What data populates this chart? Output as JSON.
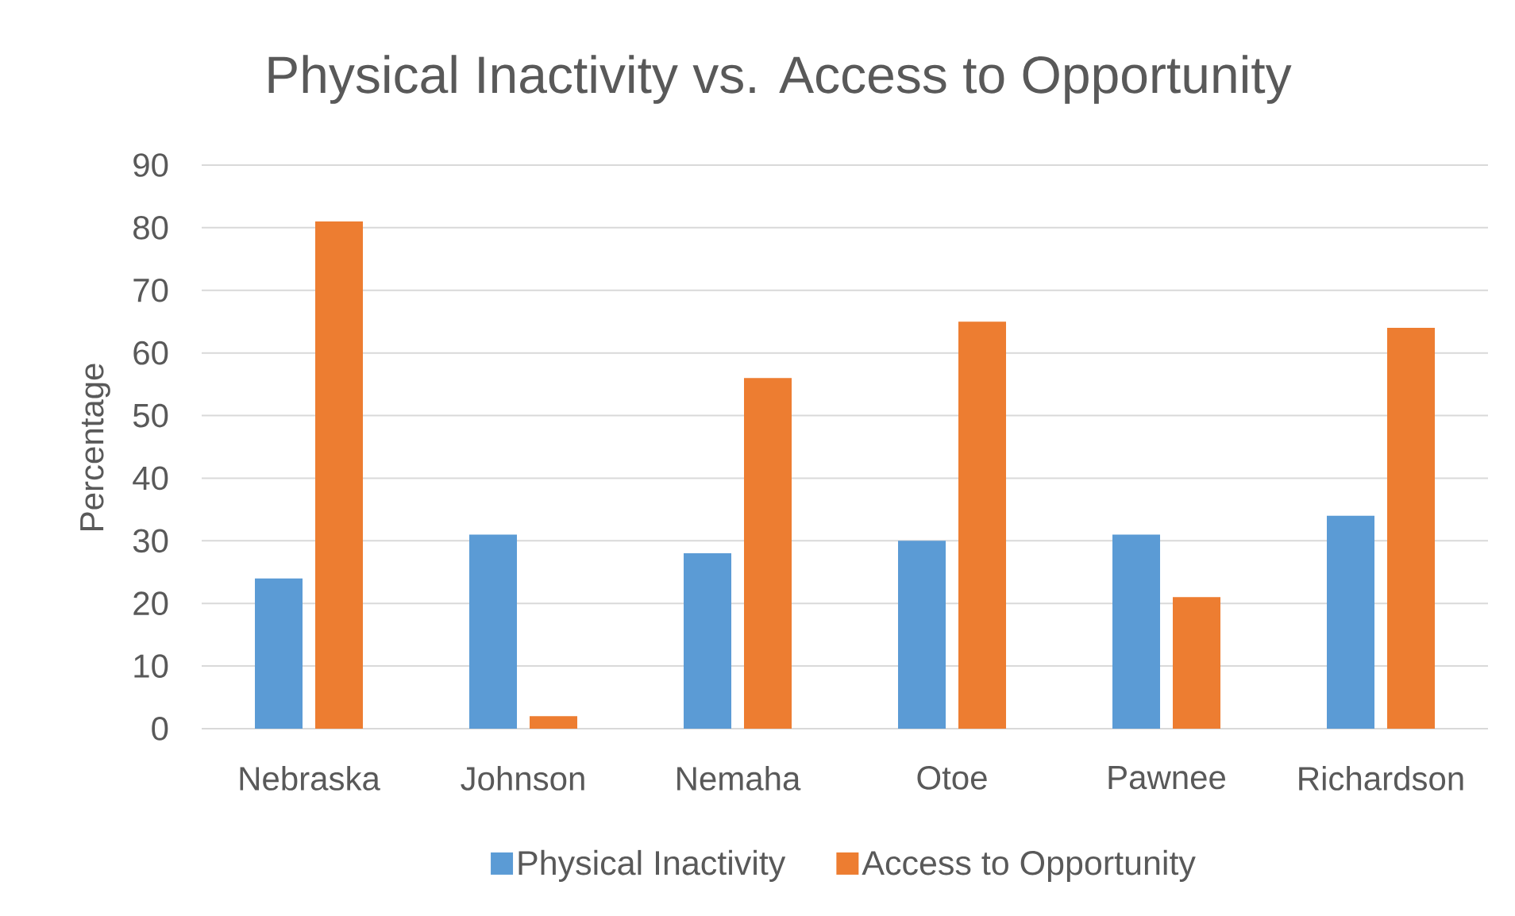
{
  "chart_data": {
    "type": "bar",
    "title": "Physical Inactivity vs. Access to Opportunity",
    "ylabel": "Percentage",
    "categories": [
      "Nebraska",
      "Johnson",
      "Nemaha",
      "Otoe",
      "Pawnee",
      "Richardson"
    ],
    "series": [
      {
        "name": "Physical Inactivity",
        "color": "#5b9bd5",
        "values": [
          24,
          31,
          28,
          30,
          31,
          34
        ]
      },
      {
        "name": "Access to Opportunity",
        "color": "#ed7d31",
        "values": [
          81,
          2,
          56,
          65,
          21,
          64
        ]
      }
    ],
    "ylim": [
      0,
      90
    ],
    "yticks": [
      0,
      10,
      20,
      30,
      40,
      50,
      60,
      70,
      80,
      90
    ],
    "grid": "y",
    "legend": "bottom"
  }
}
